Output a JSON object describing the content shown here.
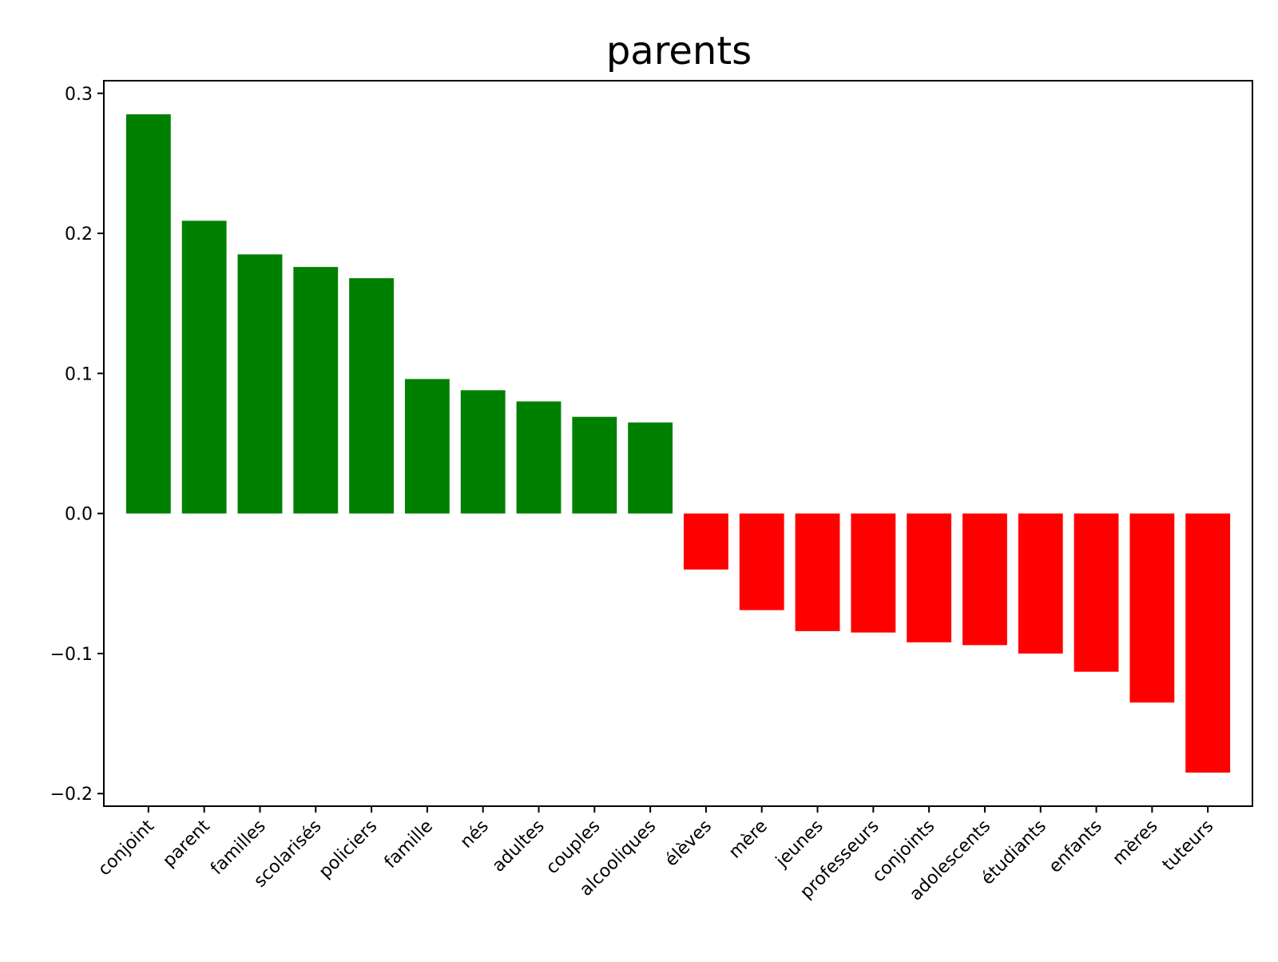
{
  "chart_data": {
    "type": "bar",
    "title": "parents",
    "xlabel": "",
    "ylabel": "",
    "ylim": [
      -0.209,
      0.309
    ],
    "yticks": [
      0.3,
      0.2,
      0.1,
      0.0,
      -0.1,
      -0.2
    ],
    "ytick_labels": [
      "0.3",
      "0.2",
      "0.1",
      "0.0",
      "−0.1",
      "−0.2"
    ],
    "grid": false,
    "legend": false,
    "colors": {
      "positive": "#008000",
      "negative": "#ff0000"
    },
    "categories": [
      "conjoint",
      "parent",
      "familles",
      "scolarisés",
      "policiers",
      "famille",
      "nés",
      "adultes",
      "couples",
      "alcooliques",
      "élèves",
      "mère",
      "jeunes",
      "professeurs",
      "conjoints",
      "adolescents",
      "étudiants",
      "enfants",
      "mères",
      "tuteurs"
    ],
    "values": [
      0.285,
      0.209,
      0.185,
      0.176,
      0.168,
      0.096,
      0.088,
      0.08,
      0.069,
      0.065,
      -0.04,
      -0.069,
      -0.084,
      -0.085,
      -0.092,
      -0.094,
      -0.1,
      -0.113,
      -0.135,
      -0.185
    ]
  }
}
